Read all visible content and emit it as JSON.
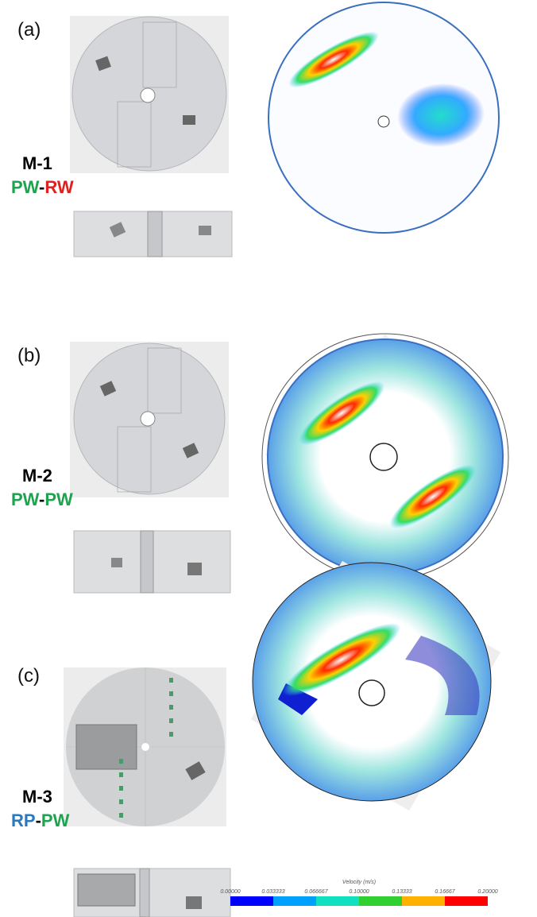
{
  "panels": [
    {
      "label": "(a)",
      "model": "M-1",
      "config": [
        {
          "text": "PW",
          "color": "#1ea34e"
        },
        {
          "text": "-",
          "color": "#000000"
        },
        {
          "text": "RW",
          "color": "#e0201e"
        }
      ]
    },
    {
      "label": "(b)",
      "model": "M-2",
      "config": [
        {
          "text": "PW",
          "color": "#1ea34e"
        },
        {
          "text": "-",
          "color": "#000000"
        },
        {
          "text": "PW",
          "color": "#1ea34e"
        }
      ]
    },
    {
      "label": "(c)",
      "model": "M-3",
      "config": [
        {
          "text": "RP",
          "color": "#2a78c0"
        },
        {
          "text": "-",
          "color": "#000000"
        },
        {
          "text": "PW",
          "color": "#1ea34e"
        }
      ]
    }
  ],
  "colorbar": {
    "title": "Velocity (m/s)",
    "ticks": [
      "0.00000",
      "0.033333",
      "0.066667",
      "0.10000",
      "0.13333",
      "0.16667",
      "0.20000"
    ]
  }
}
